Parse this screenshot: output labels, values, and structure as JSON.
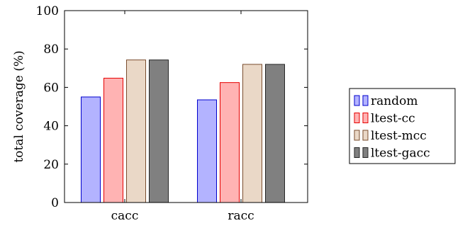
{
  "chart_data": {
    "type": "bar",
    "categories": [
      "cacc",
      "racc"
    ],
    "series": [
      {
        "name": "random",
        "values": [
          55,
          53.5
        ],
        "fill": "#b3b3ff",
        "stroke": "#0000cc"
      },
      {
        "name": "ltest-cc",
        "values": [
          64.8,
          62.5
        ],
        "fill": "#ffb3b3",
        "stroke": "#e60000"
      },
      {
        "name": "ltest-mcc",
        "values": [
          74.3,
          72
        ],
        "fill": "#ead8c7",
        "stroke": "#7a4d2e"
      },
      {
        "name": "ltest-gacc",
        "values": [
          74.3,
          72
        ],
        "fill": "#808080",
        "stroke": "#262626"
      }
    ],
    "title": "",
    "xlabel": "",
    "ylabel": "total coverage (%)",
    "ylim": [
      0,
      100
    ],
    "yticks": [
      0,
      20,
      40,
      60,
      80,
      100
    ],
    "grid": false,
    "legend_position": "outside-right"
  }
}
